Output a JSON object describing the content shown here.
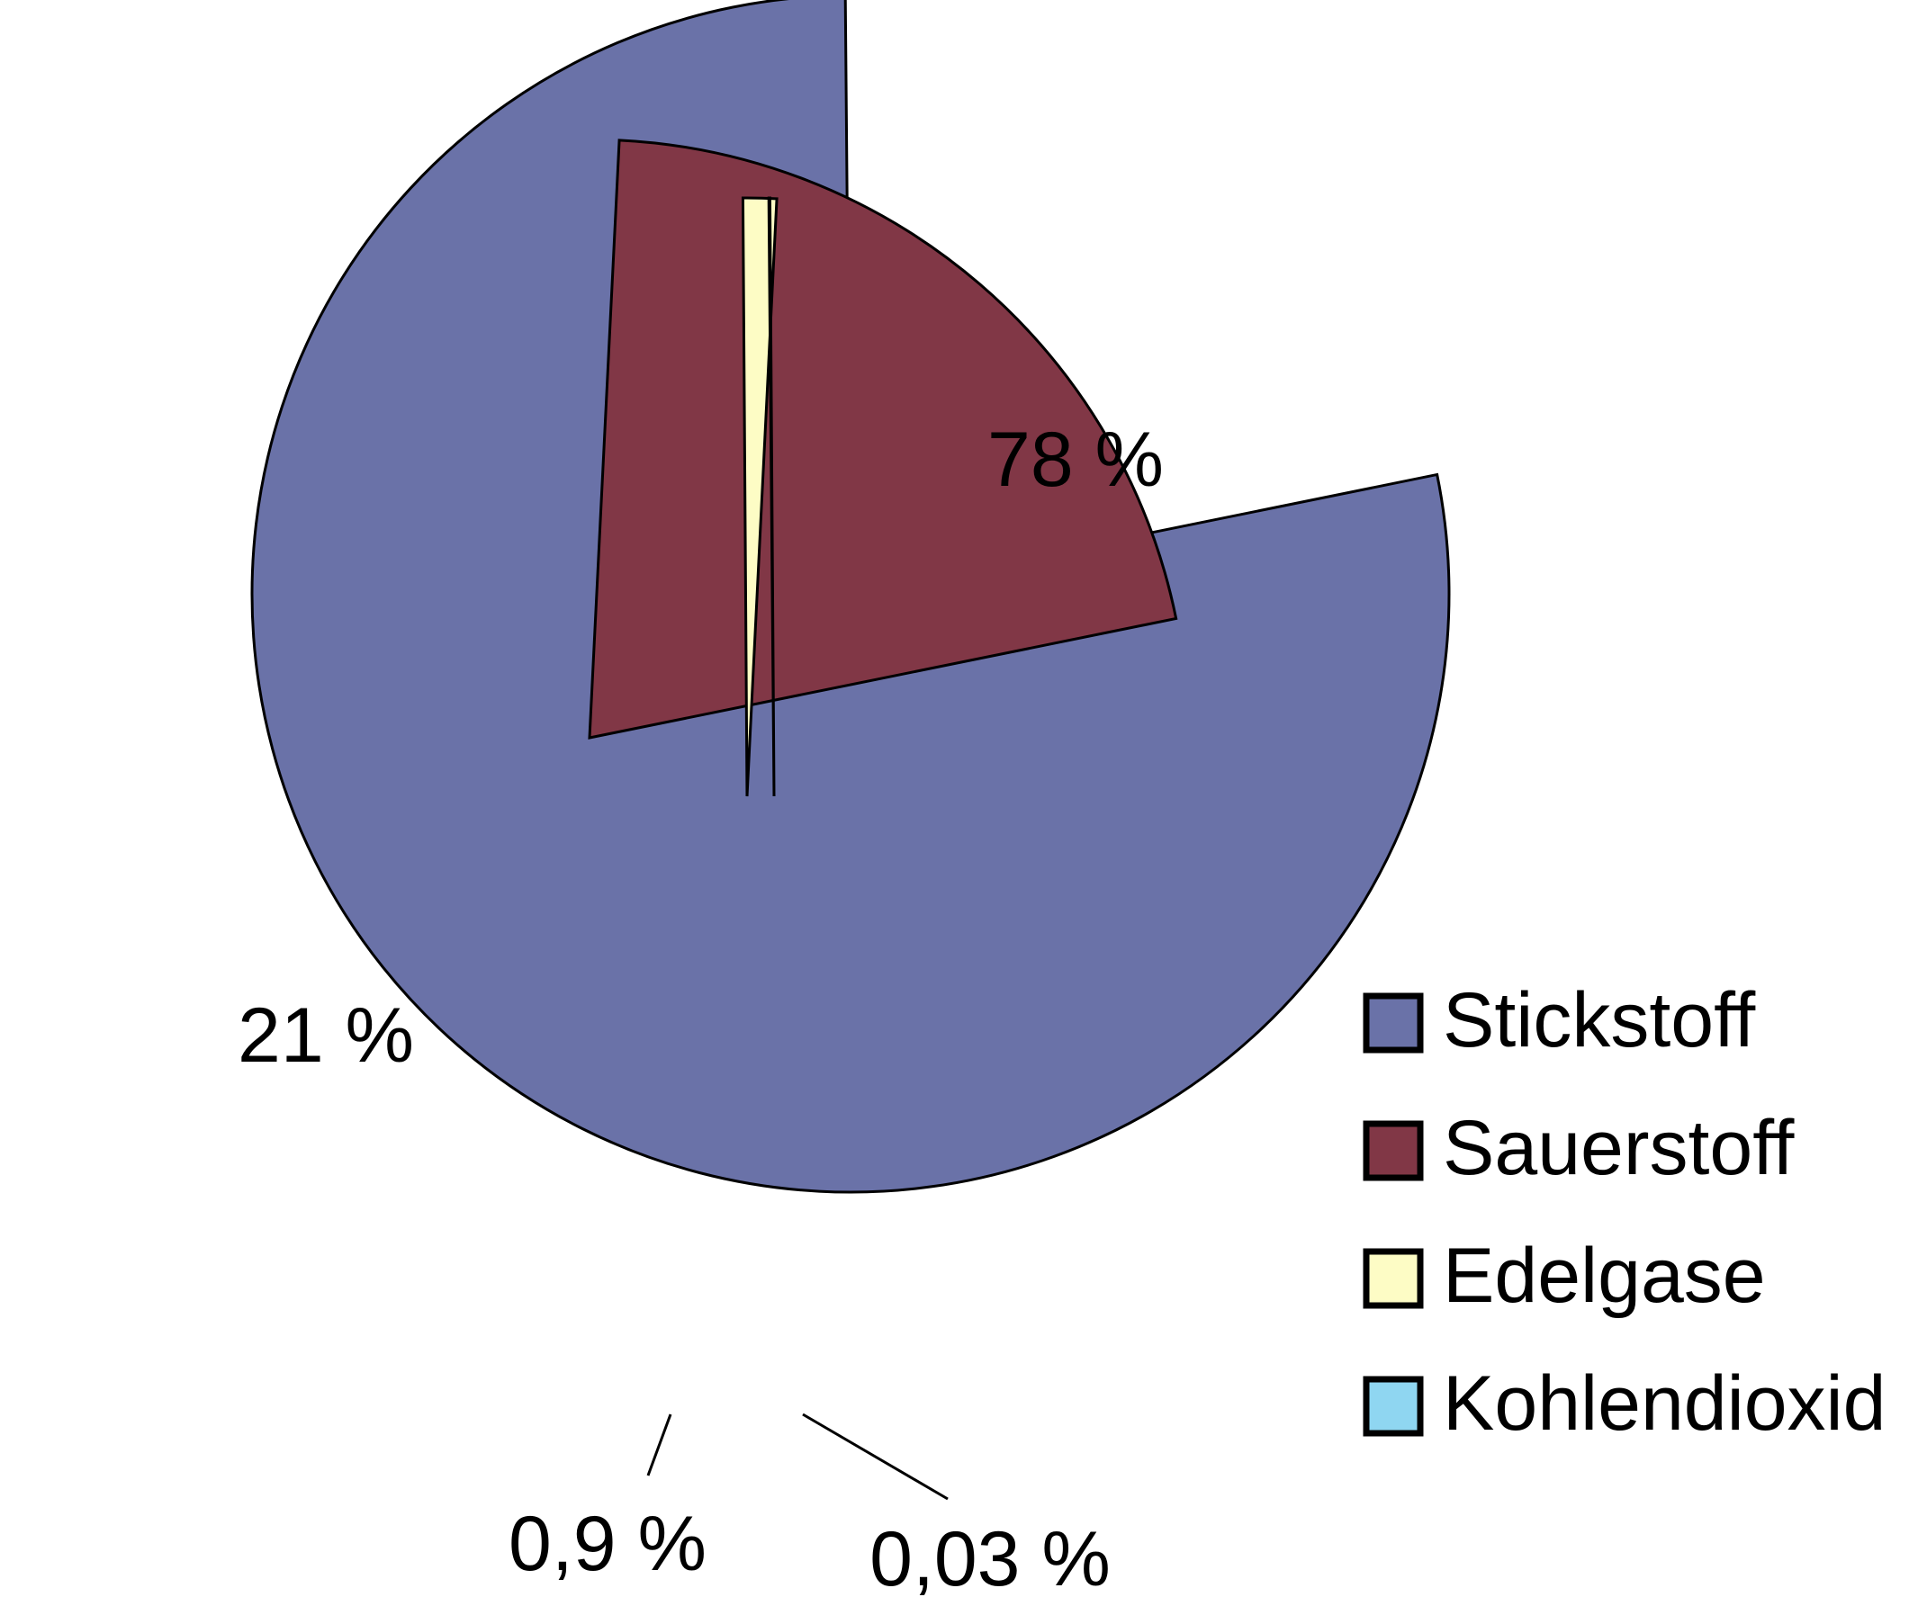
{
  "chart_data": {
    "type": "pie",
    "title": "",
    "slices": [
      {
        "name": "Stickstoff",
        "value": 78,
        "label": "78 %",
        "color": "#6a72a8",
        "exploded": false
      },
      {
        "name": "Sauerstoff",
        "value": 21,
        "label": "21 %",
        "color": "#813746",
        "exploded": true
      },
      {
        "name": "Edelgase",
        "value": 0.9,
        "label": "0,9 %",
        "color": "#fdfcc5",
        "exploded": true
      },
      {
        "name": "Kohlendioxid",
        "value": 0.03,
        "label": "0,03 %",
        "color": "#8fd6f1",
        "exploded": true
      }
    ],
    "legend": {
      "position": "right",
      "entries": [
        "Stickstoff",
        "Sauerstoff",
        "Edelgase",
        "Kohlendioxid"
      ]
    }
  }
}
